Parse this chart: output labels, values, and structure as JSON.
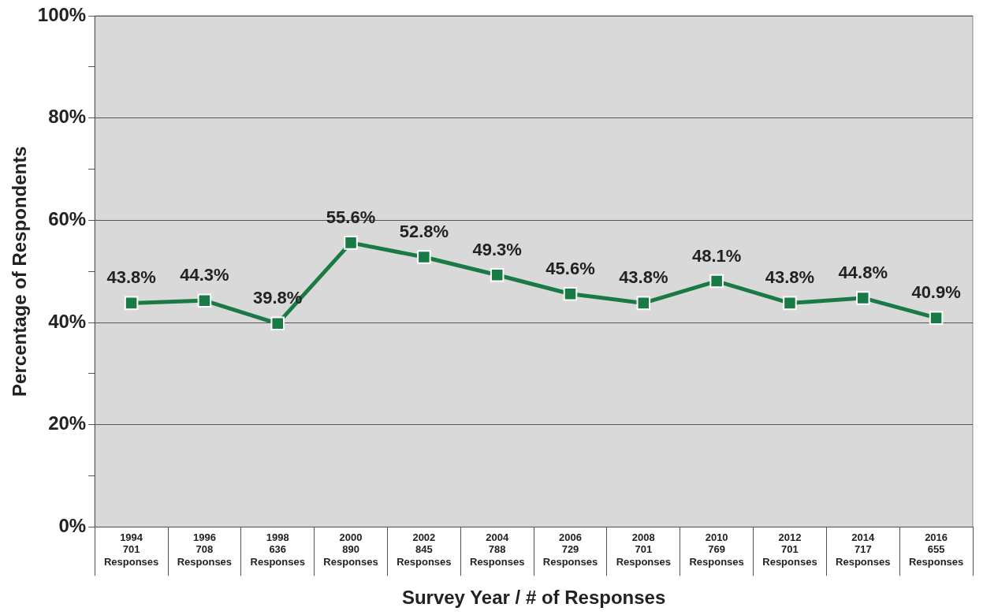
{
  "chart_data": {
    "type": "line",
    "xlabel": "Survey Year / # of Responses",
    "ylabel": "Percentage of Respondents",
    "categories": [
      "1994\n701\nResponses",
      "1996\n708\nResponses",
      "1998\n636\nResponses",
      "2000\n890\nResponses",
      "2002\n845\nResponses",
      "2004\n788\nResponses",
      "2006\n729\nResponses",
      "2008\n701\nResponses",
      "2010\n769\nResponses",
      "2012\n701\nResponses",
      "2014\n717\nResponses",
      "2016\n655\nResponses"
    ],
    "series": [
      {
        "color": "#1a7a46",
        "values": [
          43.8,
          44.3,
          39.8,
          55.6,
          52.8,
          49.3,
          45.6,
          43.8,
          48.1,
          43.8,
          44.8,
          40.9
        ],
        "value_labels": [
          "43.8%",
          "44.3%",
          "39.8%",
          "55.6%",
          "52.8%",
          "49.3%",
          "45.6%",
          "43.8%",
          "48.1%",
          "43.8%",
          "44.8%",
          "40.9%"
        ]
      }
    ],
    "ylim": [
      0,
      100
    ],
    "yticks": [
      {
        "value": 0,
        "label": "0%"
      },
      {
        "value": 10,
        "label": null
      },
      {
        "value": 20,
        "label": "20%"
      },
      {
        "value": 30,
        "label": null
      },
      {
        "value": 40,
        "label": "40%"
      },
      {
        "value": 50,
        "label": null
      },
      {
        "value": 60,
        "label": "60%"
      },
      {
        "value": 70,
        "label": null
      },
      {
        "value": 80,
        "label": "80%"
      },
      {
        "value": 90,
        "label": null
      },
      {
        "value": 100,
        "label": "100%"
      }
    ],
    "grid": "y",
    "marker": "square",
    "line_style": "solid",
    "legend": false
  }
}
